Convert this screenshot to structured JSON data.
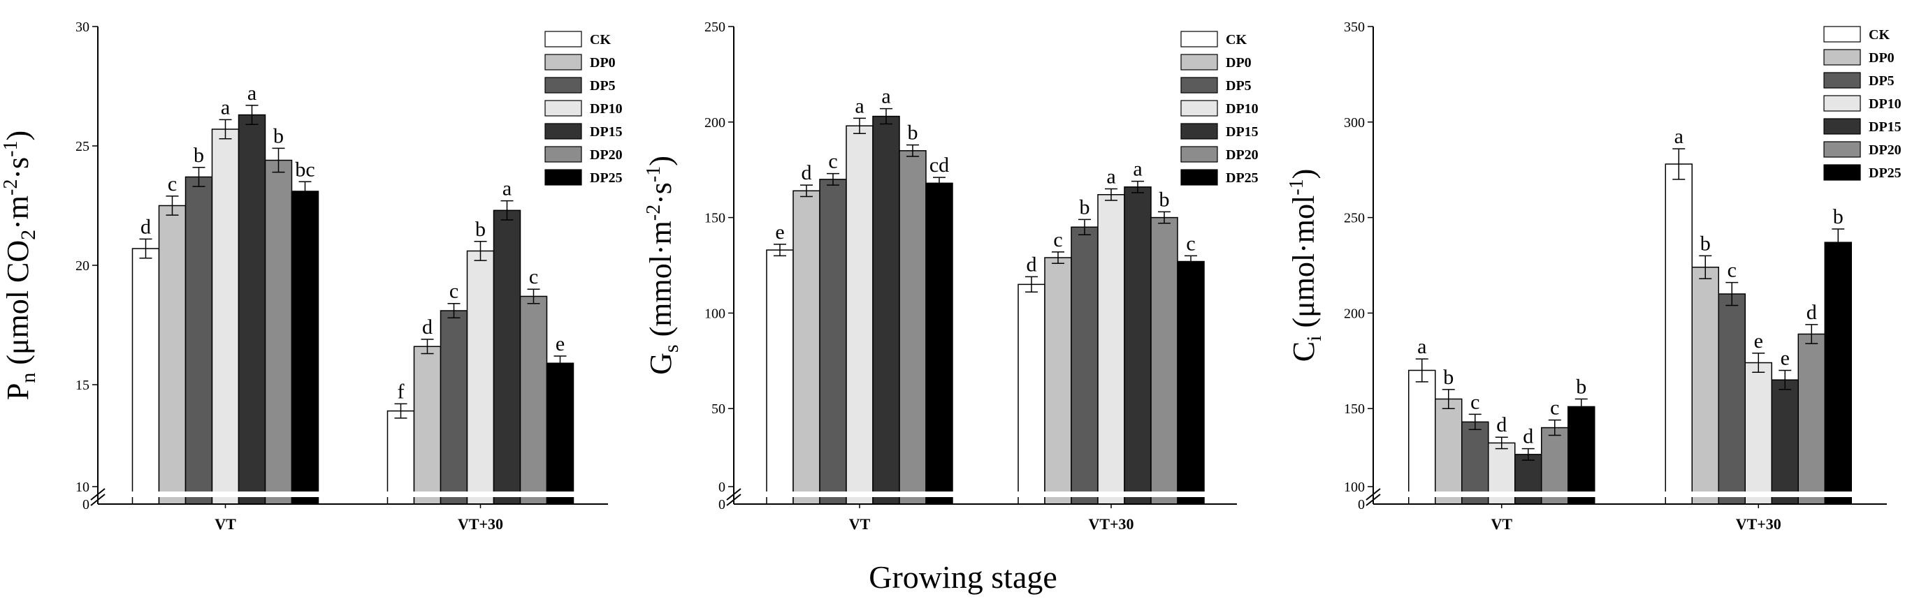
{
  "global_xlabel": "Growing stage",
  "series_names": [
    "CK",
    "DP0",
    "DP5",
    "DP10",
    "DP15",
    "DP20",
    "DP25"
  ],
  "colors": {
    "CK": "#ffffff",
    "DP0": "#c3c3c3",
    "DP5": "#5b5b5b",
    "DP10": "#e6e6e6",
    "DP15": "#333333",
    "DP20": "#8c8c8c",
    "DP25": "#000000"
  },
  "chart_data": [
    {
      "type": "bar",
      "ylabel_main": "P",
      "ylabel_sub": "n",
      "ylabel_rest": " (μmol CO",
      "ylabel_sub2": "2",
      "ylabel_mid": "·m",
      "ylabel_sup1": "-2",
      "ylabel_mid2": "·s",
      "ylabel_sup2": "-1",
      "ylabel_end": ")",
      "xlabel": "",
      "categories": [
        "VT",
        "VT+30"
      ],
      "ylim": [
        10,
        30
      ],
      "yticks": [
        10,
        15,
        20,
        25,
        30
      ],
      "axis_break": true,
      "series": [
        {
          "name": "CK",
          "values": [
            20.7,
            13.9
          ],
          "errors": [
            0.4,
            0.3
          ],
          "letters": [
            "d",
            "f"
          ]
        },
        {
          "name": "DP0",
          "values": [
            22.5,
            16.6
          ],
          "errors": [
            0.4,
            0.3
          ],
          "letters": [
            "c",
            "d"
          ]
        },
        {
          "name": "DP5",
          "values": [
            23.7,
            18.1
          ],
          "errors": [
            0.4,
            0.3
          ],
          "letters": [
            "b",
            "c"
          ]
        },
        {
          "name": "DP10",
          "values": [
            25.7,
            20.6
          ],
          "errors": [
            0.4,
            0.4
          ],
          "letters": [
            "a",
            "b"
          ]
        },
        {
          "name": "DP15",
          "values": [
            26.3,
            22.3
          ],
          "errors": [
            0.4,
            0.4
          ],
          "letters": [
            "a",
            "a"
          ]
        },
        {
          "name": "DP20",
          "values": [
            24.4,
            18.7
          ],
          "errors": [
            0.5,
            0.3
          ],
          "letters": [
            "b",
            "c"
          ]
        },
        {
          "name": "DP25",
          "values": [
            23.1,
            15.9
          ],
          "errors": [
            0.4,
            0.3
          ],
          "letters": [
            "bc",
            "e"
          ]
        }
      ]
    },
    {
      "type": "bar",
      "ylabel_main": "G",
      "ylabel_sub": "s",
      "ylabel_rest": " (mmol·m",
      "ylabel_sup1": "-2",
      "ylabel_mid2": "·s",
      "ylabel_sup2": "-1",
      "ylabel_end": ")",
      "xlabel": "",
      "categories": [
        "VT",
        "VT+30"
      ],
      "ylim": [
        0,
        250
      ],
      "yticks": [
        0,
        50,
        100,
        150,
        200,
        250
      ],
      "axis_break": true,
      "series": [
        {
          "name": "CK",
          "values": [
            133,
            115
          ],
          "errors": [
            3,
            4
          ],
          "letters": [
            "e",
            "d"
          ]
        },
        {
          "name": "DP0",
          "values": [
            164,
            129
          ],
          "errors": [
            3,
            3
          ],
          "letters": [
            "d",
            "c"
          ]
        },
        {
          "name": "DP5",
          "values": [
            170,
            145
          ],
          "errors": [
            3,
            4
          ],
          "letters": [
            "c",
            "b"
          ]
        },
        {
          "name": "DP10",
          "values": [
            198,
            162
          ],
          "errors": [
            4,
            3
          ],
          "letters": [
            "a",
            "a"
          ]
        },
        {
          "name": "DP15",
          "values": [
            203,
            166
          ],
          "errors": [
            4,
            3
          ],
          "letters": [
            "a",
            "a"
          ]
        },
        {
          "name": "DP20",
          "values": [
            185,
            150
          ],
          "errors": [
            3,
            3
          ],
          "letters": [
            "b",
            "b"
          ]
        },
        {
          "name": "DP25",
          "values": [
            168,
            127
          ],
          "errors": [
            3,
            3
          ],
          "letters": [
            "cd",
            "c"
          ]
        }
      ]
    },
    {
      "type": "bar",
      "ylabel_main": "C",
      "ylabel_sub": "i",
      "ylabel_rest": " (μmol·mol",
      "ylabel_sup2": "-1",
      "ylabel_end": ")",
      "xlabel": "",
      "categories": [
        "VT",
        "VT+30"
      ],
      "ylim": [
        100,
        350
      ],
      "yticks": [
        100,
        150,
        200,
        250,
        300,
        350
      ],
      "axis_break": true,
      "series": [
        {
          "name": "CK",
          "values": [
            170,
            278
          ],
          "errors": [
            6,
            8
          ],
          "letters": [
            "a",
            "a"
          ]
        },
        {
          "name": "DP0",
          "values": [
            155,
            224
          ],
          "errors": [
            5,
            6
          ],
          "letters": [
            "b",
            "b"
          ]
        },
        {
          "name": "DP5",
          "values": [
            143,
            210
          ],
          "errors": [
            4,
            6
          ],
          "letters": [
            "c",
            "c"
          ]
        },
        {
          "name": "DP10",
          "values": [
            132,
            174
          ],
          "errors": [
            3,
            5
          ],
          "letters": [
            "d",
            "e"
          ]
        },
        {
          "name": "DP15",
          "values": [
            126,
            165
          ],
          "errors": [
            3,
            5
          ],
          "letters": [
            "d",
            "e"
          ]
        },
        {
          "name": "DP20",
          "values": [
            140,
            189
          ],
          "errors": [
            4,
            5
          ],
          "letters": [
            "c",
            "d"
          ]
        },
        {
          "name": "DP25",
          "values": [
            151,
            237
          ],
          "errors": [
            4,
            7
          ],
          "letters": [
            "b",
            "b"
          ]
        }
      ]
    }
  ]
}
